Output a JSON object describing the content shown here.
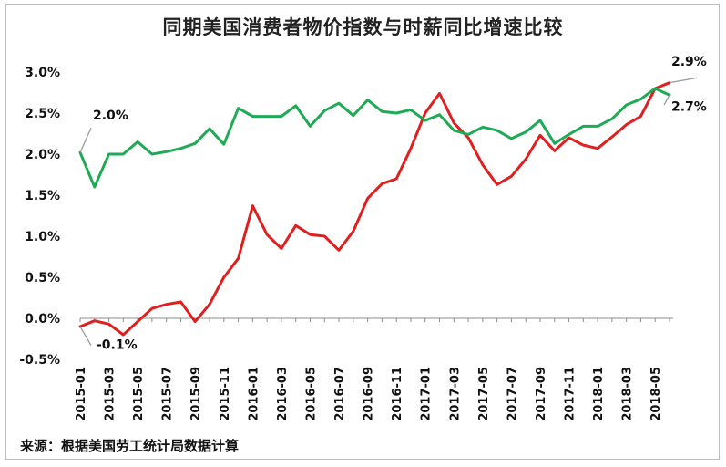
{
  "chart_data": {
    "type": "line",
    "title": "同期美国消费者物价指数与时薪同比增速比较",
    "source": "来源：根据美国劳工统计局数据计算",
    "ylim": [
      -0.5,
      3.0
    ],
    "yticks": [
      "3.0%",
      "2.5%",
      "2.0%",
      "1.5%",
      "1.0%",
      "0.5%",
      "0.0%",
      "-0.5%"
    ],
    "ytick_values": [
      3.0,
      2.5,
      2.0,
      1.5,
      1.0,
      0.5,
      0.0,
      -0.5
    ],
    "x": [
      "2015-01",
      "2015-02",
      "2015-03",
      "2015-04",
      "2015-05",
      "2015-06",
      "2015-07",
      "2015-08",
      "2015-09",
      "2015-10",
      "2015-11",
      "2015-12",
      "2016-01",
      "2016-02",
      "2016-03",
      "2016-04",
      "2016-05",
      "2016-06",
      "2016-07",
      "2016-08",
      "2016-09",
      "2016-10",
      "2016-11",
      "2016-12",
      "2017-01",
      "2017-02",
      "2017-03",
      "2017-04",
      "2017-05",
      "2017-06",
      "2017-07",
      "2017-08",
      "2017-09",
      "2017-10",
      "2017-11",
      "2017-12",
      "2018-01",
      "2018-02",
      "2018-03",
      "2018-04",
      "2018-05",
      "2018-06"
    ],
    "xtick_labels": [
      "2015-01",
      "2015-03",
      "2015-05",
      "2015-07",
      "2015-09",
      "2015-11",
      "2016-01",
      "2016-03",
      "2016-05",
      "2016-07",
      "2016-09",
      "2016-11",
      "2017-01",
      "2017-03",
      "2017-05",
      "2017-07",
      "2017-09",
      "2017-11",
      "2018-01",
      "2018-03",
      "2018-05"
    ],
    "series": [
      {
        "color": "#e01f1f",
        "values": [
          -0.1,
          -0.03,
          -0.07,
          -0.2,
          -0.04,
          0.12,
          0.17,
          0.2,
          -0.04,
          0.17,
          0.5,
          0.73,
          1.37,
          1.02,
          0.85,
          1.13,
          1.02,
          1.0,
          0.83,
          1.06,
          1.46,
          1.64,
          1.7,
          2.07,
          2.5,
          2.74,
          2.38,
          2.2,
          1.87,
          1.63,
          1.73,
          1.94,
          2.23,
          2.04,
          2.2,
          2.11,
          2.07,
          2.21,
          2.36,
          2.46,
          2.8,
          2.87
        ]
      },
      {
        "color": "#1faa55",
        "values": [
          2.02,
          1.6,
          2.0,
          2.0,
          2.15,
          2.0,
          2.03,
          2.07,
          2.13,
          2.31,
          2.12,
          2.56,
          2.46,
          2.46,
          2.46,
          2.59,
          2.34,
          2.53,
          2.62,
          2.47,
          2.66,
          2.52,
          2.5,
          2.54,
          2.41,
          2.48,
          2.29,
          2.24,
          2.33,
          2.29,
          2.19,
          2.27,
          2.41,
          2.13,
          2.24,
          2.34,
          2.34,
          2.43,
          2.6,
          2.67,
          2.8,
          2.72
        ]
      }
    ],
    "annotations": [
      {
        "text": "2.0%"
      },
      {
        "text": "-0.1%"
      },
      {
        "text": "2.9%"
      },
      {
        "text": "2.7%"
      }
    ]
  }
}
